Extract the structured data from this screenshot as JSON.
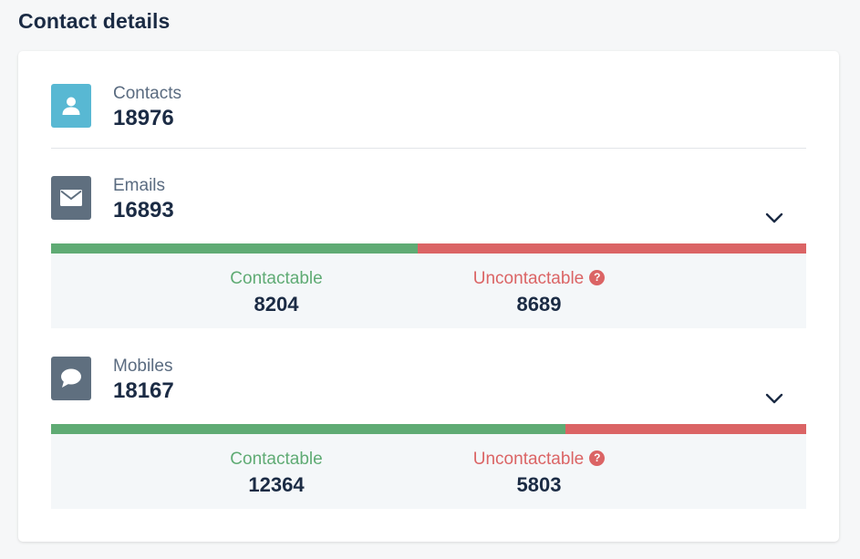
{
  "page": {
    "title": "Contact details"
  },
  "colors": {
    "green": "#5fab74",
    "red": "#db6465",
    "contacts_icon_bg": "#58b8d3",
    "channel_icon_bg": "#5f6f7f"
  },
  "contacts": {
    "label": "Contacts",
    "value": "18976",
    "icon": "person-icon"
  },
  "emails": {
    "label": "Emails",
    "value": "16893",
    "icon": "envelope-icon",
    "contactable_fraction": 0.4856,
    "contactable": {
      "label": "Contactable",
      "value": "8204"
    },
    "uncontactable": {
      "label": "Uncontactable",
      "value": "8689",
      "help": "?"
    }
  },
  "mobiles": {
    "label": "Mobiles",
    "value": "18167",
    "icon": "chat-bubble-icon",
    "contactable_fraction": 0.6806,
    "contactable": {
      "label": "Contactable",
      "value": "12364"
    },
    "uncontactable": {
      "label": "Uncontactable",
      "value": "5803",
      "help": "?"
    }
  }
}
